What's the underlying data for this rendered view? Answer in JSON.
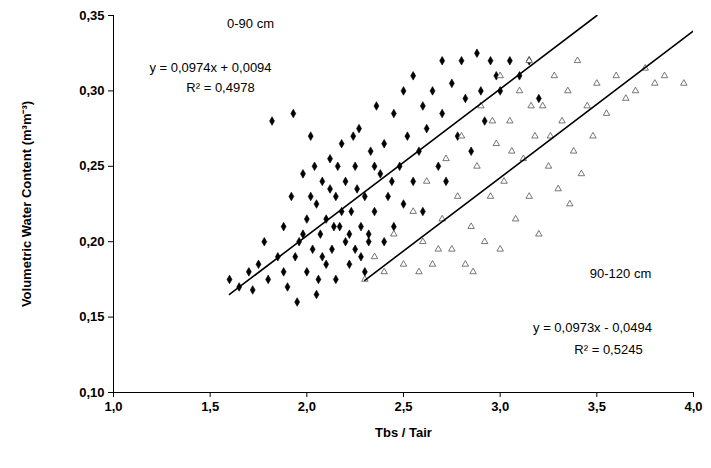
{
  "chart_data": {
    "type": "scatter",
    "x_label": "Tbs / Tair",
    "y_label": "Volumetric Water Content (m³m⁻³)",
    "xlim": [
      1.0,
      4.0
    ],
    "ylim": [
      0.1,
      0.35
    ],
    "xticks": [
      {
        "value": 1.0,
        "label": "1,0"
      },
      {
        "value": 1.5,
        "label": "1,5"
      },
      {
        "value": 2.0,
        "label": "2,0"
      },
      {
        "value": 2.5,
        "label": "2,5"
      },
      {
        "value": 3.0,
        "label": "3,0"
      },
      {
        "value": 3.5,
        "label": "3,5"
      },
      {
        "value": 4.0,
        "label": "4,0"
      }
    ],
    "yticks": [
      {
        "value": 0.1,
        "label": "0,10"
      },
      {
        "value": 0.15,
        "label": "0,15"
      },
      {
        "value": 0.2,
        "label": "0,20"
      },
      {
        "value": 0.25,
        "label": "0,25"
      },
      {
        "value": 0.3,
        "label": "0,30"
      },
      {
        "value": 0.35,
        "label": "0,35"
      }
    ],
    "grid": false,
    "annotations": [
      "0-90 cm",
      "y = 0,0974x + 0,0094",
      "R² = 0,4978",
      "90-120 cm",
      "y = 0,0973x - 0,0494",
      "R² = 0,5245"
    ],
    "series": [
      {
        "name": "0-90 cm",
        "type": "scatter",
        "marker": "diamond",
        "color": "#000000",
        "x": [
          1.6,
          1.65,
          1.7,
          1.72,
          1.75,
          1.78,
          1.8,
          1.82,
          1.85,
          1.88,
          1.9,
          1.92,
          1.93,
          1.95,
          1.96,
          1.98,
          2.0,
          2.0,
          2.02,
          2.03,
          2.05,
          2.05,
          2.07,
          2.08,
          2.1,
          2.1,
          2.12,
          2.13,
          2.15,
          2.15,
          2.17,
          2.18,
          2.2,
          2.2,
          2.22,
          2.23,
          2.25,
          2.25,
          2.27,
          2.28,
          2.3,
          2.3,
          2.32,
          2.33,
          2.35,
          2.36,
          2.38,
          2.4,
          2.4,
          2.42,
          2.45,
          2.45,
          2.48,
          2.5,
          2.5,
          2.52,
          2.55,
          2.55,
          2.58,
          2.6,
          2.6,
          2.62,
          2.65,
          2.68,
          2.7,
          2.7,
          2.72,
          2.75,
          2.78,
          2.8,
          2.82,
          2.85,
          2.88,
          2.9,
          2.92,
          2.95,
          2.98,
          3.0,
          3.05,
          3.1,
          3.15,
          3.2,
          1.98,
          2.08,
          2.18,
          2.12,
          2.22,
          2.28,
          2.02,
          2.14,
          1.94,
          2.06,
          2.26,
          2.35,
          2.44,
          2.16,
          2.24,
          1.88,
          2.32,
          2.04
        ],
        "values": [
          0.175,
          0.17,
          0.18,
          0.168,
          0.185,
          0.2,
          0.175,
          0.28,
          0.19,
          0.21,
          0.17,
          0.23,
          0.285,
          0.16,
          0.2,
          0.245,
          0.18,
          0.215,
          0.27,
          0.195,
          0.225,
          0.165,
          0.205,
          0.24,
          0.185,
          0.215,
          0.255,
          0.195,
          0.23,
          0.175,
          0.21,
          0.265,
          0.2,
          0.24,
          0.185,
          0.22,
          0.25,
          0.195,
          0.275,
          0.21,
          0.23,
          0.18,
          0.205,
          0.26,
          0.22,
          0.29,
          0.245,
          0.2,
          0.265,
          0.23,
          0.285,
          0.21,
          0.25,
          0.3,
          0.225,
          0.27,
          0.24,
          0.31,
          0.26,
          0.29,
          0.22,
          0.275,
          0.3,
          0.25,
          0.32,
          0.285,
          0.24,
          0.305,
          0.27,
          0.32,
          0.295,
          0.26,
          0.325,
          0.3,
          0.28,
          0.32,
          0.31,
          0.3,
          0.32,
          0.31,
          0.32,
          0.295,
          0.205,
          0.19,
          0.22,
          0.235,
          0.205,
          0.19,
          0.23,
          0.21,
          0.19,
          0.175,
          0.235,
          0.25,
          0.24,
          0.25,
          0.27,
          0.18,
          0.2,
          0.25
        ]
      },
      {
        "name": "90-120 cm",
        "type": "scatter",
        "marker": "triangle",
        "color": "#555555",
        "x": [
          2.3,
          2.35,
          2.4,
          2.45,
          2.5,
          2.55,
          2.6,
          2.62,
          2.65,
          2.7,
          2.72,
          2.75,
          2.78,
          2.8,
          2.82,
          2.85,
          2.88,
          2.9,
          2.92,
          2.95,
          2.98,
          3.0,
          3.0,
          3.02,
          3.05,
          3.08,
          3.1,
          3.12,
          3.15,
          3.15,
          3.18,
          3.2,
          3.22,
          3.25,
          3.28,
          3.3,
          3.32,
          3.35,
          3.38,
          3.4,
          3.42,
          3.45,
          3.48,
          3.5,
          3.55,
          3.6,
          3.65,
          3.7,
          3.75,
          3.8,
          3.85,
          3.95,
          2.58,
          2.68,
          2.86,
          3.06,
          3.26,
          3.36,
          2.96,
          3.16
        ],
        "values": [
          0.175,
          0.19,
          0.18,
          0.205,
          0.185,
          0.22,
          0.2,
          0.24,
          0.185,
          0.215,
          0.255,
          0.195,
          0.23,
          0.27,
          0.185,
          0.21,
          0.25,
          0.29,
          0.2,
          0.23,
          0.265,
          0.31,
          0.195,
          0.24,
          0.28,
          0.215,
          0.3,
          0.255,
          0.32,
          0.23,
          0.27,
          0.205,
          0.29,
          0.25,
          0.31,
          0.235,
          0.28,
          0.3,
          0.26,
          0.32,
          0.245,
          0.29,
          0.27,
          0.305,
          0.285,
          0.31,
          0.295,
          0.3,
          0.315,
          0.305,
          0.31,
          0.305,
          0.18,
          0.195,
          0.18,
          0.26,
          0.27,
          0.225,
          0.28,
          0.29
        ]
      },
      {
        "type": "line",
        "line_style": "solid",
        "color": "#000000",
        "x": [
          1.6,
          3.5
        ],
        "values": [
          0.165,
          0.35
        ]
      },
      {
        "type": "line",
        "line_style": "solid",
        "color": "#000000",
        "x": [
          2.3,
          4.0
        ],
        "values": [
          0.1744,
          0.3398
        ]
      }
    ]
  }
}
